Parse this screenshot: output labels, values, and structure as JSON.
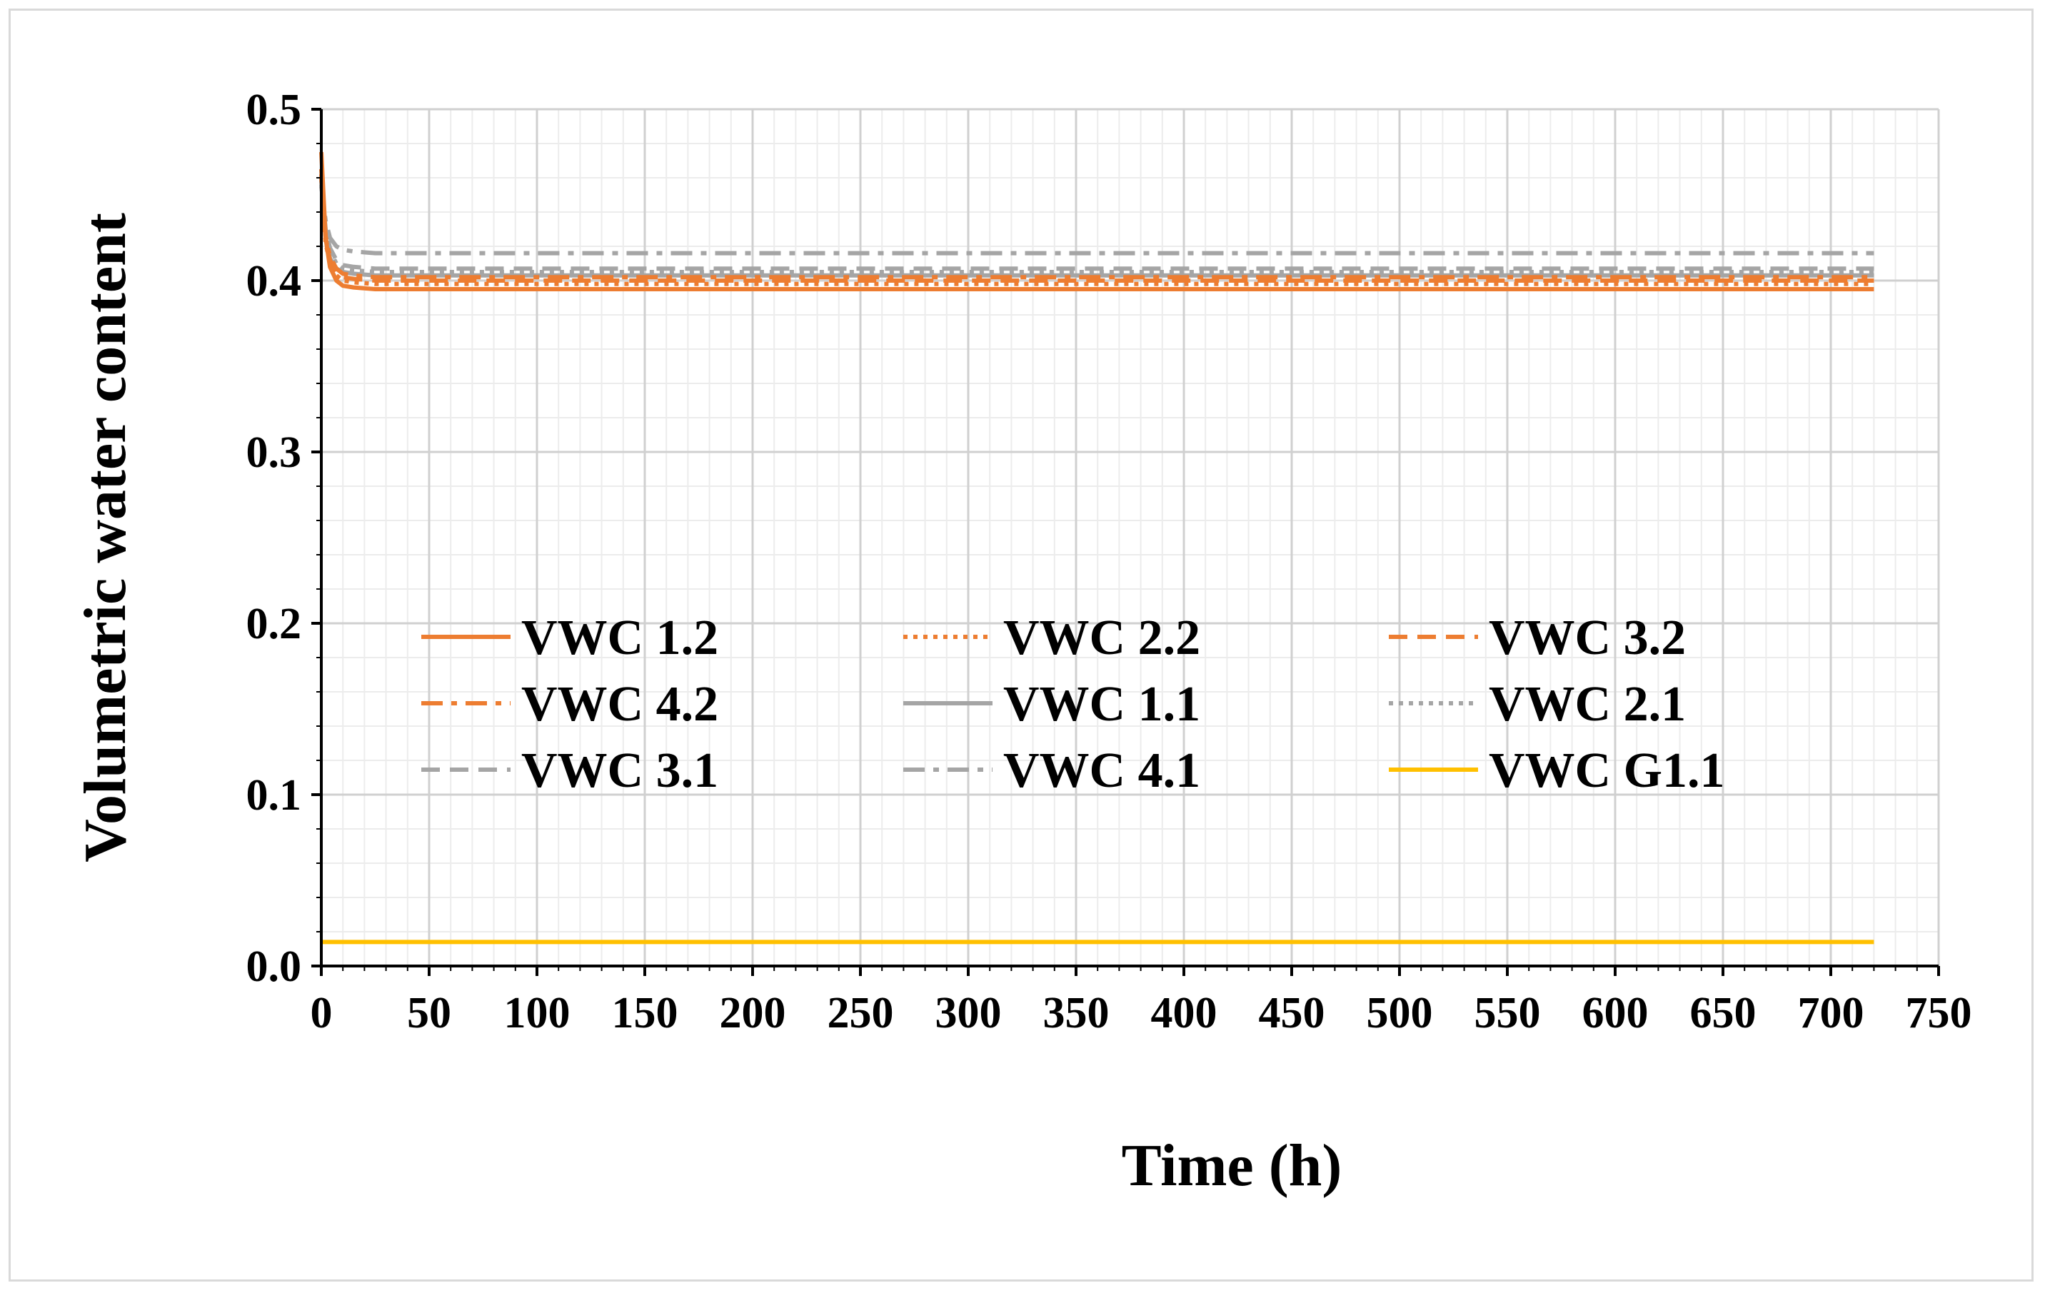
{
  "chart_data": {
    "type": "line",
    "title": "",
    "xlabel": "Time (h)",
    "ylabel": "Volumetric water content",
    "xlim": [
      0,
      750
    ],
    "ylim": [
      0.0,
      0.5
    ],
    "xticks": [
      0,
      50,
      100,
      150,
      200,
      250,
      300,
      350,
      400,
      450,
      500,
      550,
      600,
      650,
      700,
      750
    ],
    "xtick_labels": [
      "0",
      "50",
      "100",
      "150",
      "200",
      "250",
      "300",
      "350",
      "400",
      "450",
      "500",
      "550",
      "600",
      "650",
      "700",
      "750"
    ],
    "yticks": [
      0.0,
      0.1,
      0.2,
      0.3,
      0.4,
      0.5
    ],
    "ytick_labels": [
      "0.0",
      "0.1",
      "0.2",
      "0.3",
      "0.4",
      "0.5"
    ],
    "grid": true,
    "legend_position": "center-left",
    "series": [
      {
        "name": "VWC 1.2",
        "color": "#ed7d31",
        "dash": "solid",
        "x": [
          0,
          1,
          2,
          4,
          7,
          10,
          15,
          25,
          720
        ],
        "y": [
          0.475,
          0.45,
          0.425,
          0.408,
          0.4,
          0.397,
          0.396,
          0.395,
          0.395
        ]
      },
      {
        "name": "VWC 2.2",
        "color": "#ed7d31",
        "dash": "dot",
        "x": [
          0,
          1,
          2,
          4,
          7,
          10,
          15,
          25,
          720
        ],
        "y": [
          0.46,
          0.44,
          0.422,
          0.41,
          0.403,
          0.4,
          0.399,
          0.398,
          0.398
        ]
      },
      {
        "name": "VWC 3.2",
        "color": "#ed7d31",
        "dash": "dash",
        "x": [
          0,
          1,
          2,
          4,
          7,
          10,
          15,
          25,
          720
        ],
        "y": [
          0.465,
          0.445,
          0.425,
          0.412,
          0.405,
          0.402,
          0.401,
          0.4,
          0.4
        ]
      },
      {
        "name": "VWC 4.2",
        "color": "#ed7d31",
        "dash": "dashdot",
        "x": [
          0,
          1,
          2,
          4,
          7,
          10,
          15,
          25,
          720
        ],
        "y": [
          0.462,
          0.442,
          0.426,
          0.414,
          0.407,
          0.404,
          0.403,
          0.402,
          0.402
        ]
      },
      {
        "name": "VWC 1.1",
        "color": "#a5a5a5",
        "dash": "solid",
        "x": [
          0,
          1,
          2,
          4,
          7,
          10,
          15,
          25,
          720
        ],
        "y": [
          0.46,
          0.44,
          0.425,
          0.413,
          0.407,
          0.405,
          0.404,
          0.403,
          0.403
        ]
      },
      {
        "name": "VWC 2.1",
        "color": "#a5a5a5",
        "dash": "dot",
        "x": [
          0,
          1,
          2,
          4,
          7,
          10,
          15,
          25,
          720
        ],
        "y": [
          0.458,
          0.442,
          0.428,
          0.417,
          0.41,
          0.407,
          0.406,
          0.405,
          0.405
        ]
      },
      {
        "name": "VWC 3.1",
        "color": "#a5a5a5",
        "dash": "dash",
        "x": [
          0,
          1,
          2,
          4,
          7,
          10,
          15,
          25,
          720
        ],
        "y": [
          0.456,
          0.444,
          0.43,
          0.419,
          0.412,
          0.409,
          0.408,
          0.407,
          0.407
        ]
      },
      {
        "name": "VWC 4.1",
        "color": "#a5a5a5",
        "dash": "dashdot",
        "x": [
          0,
          1,
          2,
          4,
          7,
          10,
          15,
          25,
          720
        ],
        "y": [
          0.455,
          0.445,
          0.435,
          0.425,
          0.42,
          0.418,
          0.417,
          0.416,
          0.416
        ]
      },
      {
        "name": "VWC G1.1",
        "color": "#ffc000",
        "dash": "solid",
        "x": [
          0,
          720
        ],
        "y": [
          0.014,
          0.014
        ]
      }
    ]
  }
}
